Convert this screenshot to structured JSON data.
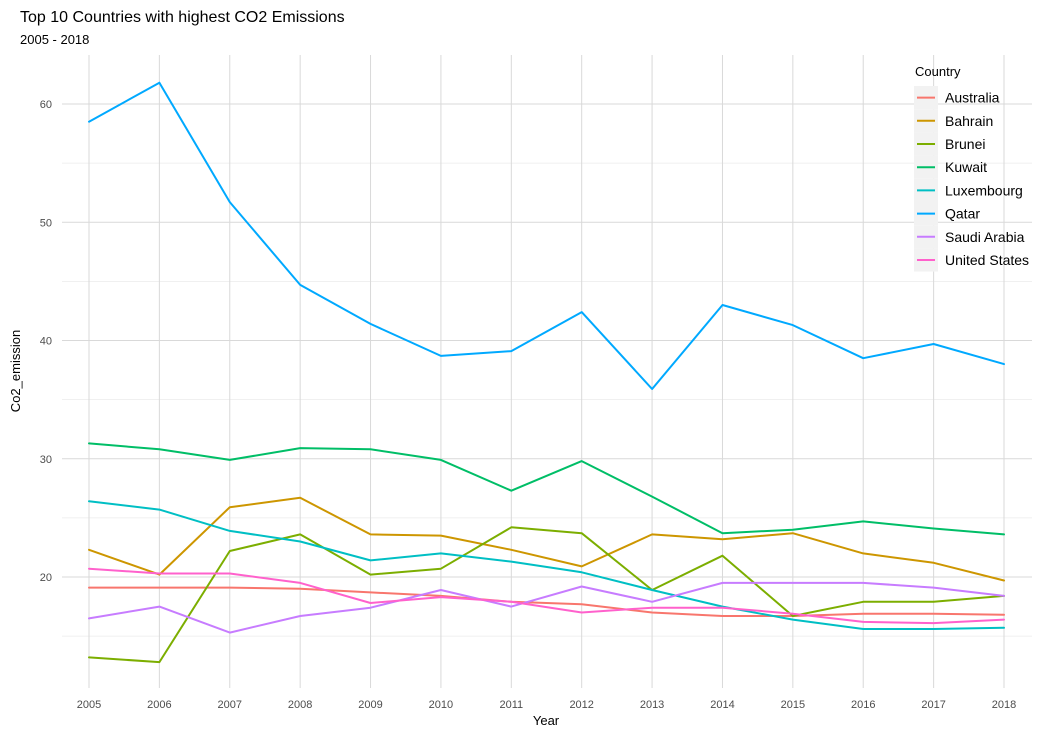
{
  "chart_data": {
    "type": "line",
    "title": "Top 10 Countries with highest CO2 Emissions",
    "subtitle": "2005 - 2018",
    "xlabel": "Year",
    "ylabel": "Co2_emission",
    "x": [
      2005,
      2006,
      2007,
      2008,
      2009,
      2010,
      2011,
      2012,
      2013,
      2014,
      2015,
      2016,
      2017,
      2018
    ],
    "yticks": [
      20,
      30,
      40,
      50,
      60
    ],
    "ylim": [
      10.5,
      64
    ],
    "grid": true,
    "legend": {
      "title": "Country",
      "position": "top-right"
    },
    "series": [
      {
        "name": "Australia",
        "color": "#F8766D",
        "values": [
          19.1,
          19.1,
          19.1,
          19.0,
          18.7,
          18.4,
          17.9,
          17.7,
          17.0,
          16.7,
          16.7,
          16.9,
          16.9,
          16.8
        ]
      },
      {
        "name": "Bahrain",
        "color": "#CD9600",
        "values": [
          22.3,
          20.2,
          25.9,
          26.7,
          23.6,
          23.5,
          22.3,
          20.9,
          23.6,
          23.2,
          23.7,
          22.0,
          21.2,
          19.7
        ]
      },
      {
        "name": "Brunei",
        "color": "#7CAE00",
        "values": [
          13.2,
          12.8,
          22.2,
          23.6,
          20.2,
          20.7,
          24.2,
          23.7,
          18.9,
          21.8,
          16.7,
          17.9,
          17.9,
          18.4
        ]
      },
      {
        "name": "Kuwait",
        "color": "#00BE67",
        "values": [
          31.3,
          30.8,
          29.9,
          30.9,
          30.8,
          29.9,
          27.3,
          29.8,
          26.8,
          23.7,
          24.0,
          24.7,
          24.1,
          23.6
        ]
      },
      {
        "name": "Luxembourg",
        "color": "#00BFC4",
        "values": [
          26.4,
          25.7,
          23.9,
          23.0,
          21.4,
          22.0,
          21.3,
          20.4,
          18.9,
          17.5,
          16.4,
          15.6,
          15.6,
          15.7
        ]
      },
      {
        "name": "Qatar",
        "color": "#00A9FF",
        "values": [
          58.5,
          61.8,
          51.7,
          44.7,
          41.4,
          38.7,
          39.1,
          42.4,
          35.9,
          43.0,
          41.3,
          38.5,
          39.7,
          38.0
        ]
      },
      {
        "name": "Saudi Arabia",
        "color": "#C77CFF",
        "values": [
          16.5,
          17.5,
          15.3,
          16.7,
          17.4,
          18.9,
          17.5,
          19.2,
          17.9,
          19.5,
          19.5,
          19.5,
          19.1,
          18.4
        ]
      },
      {
        "name": "United States",
        "color": "#FF61CC",
        "values": [
          20.7,
          20.3,
          20.3,
          19.5,
          17.8,
          18.3,
          17.9,
          17.0,
          17.4,
          17.4,
          16.9,
          16.2,
          16.1,
          16.4
        ]
      }
    ]
  }
}
